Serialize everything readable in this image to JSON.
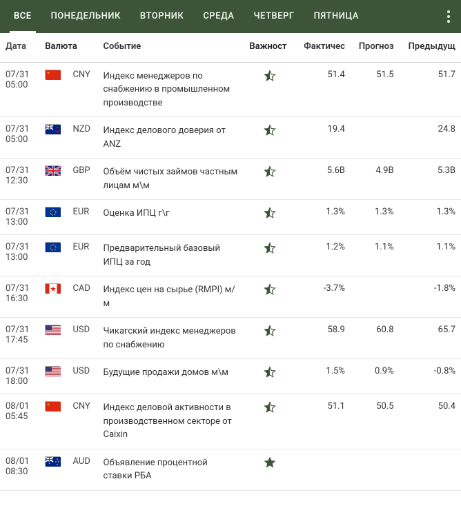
{
  "colors": {
    "header_bg": "#3d5438",
    "tab_text": "#e8eee6",
    "tab_active_underline": "#ffffff",
    "row_border": "#e6e6e6",
    "star_outline": "#3d5438",
    "star_fill": "#3d5438"
  },
  "tabs": [
    {
      "label": "ВСЕ",
      "active": true
    },
    {
      "label": "ПОНЕДЕЛЬНИК",
      "active": false
    },
    {
      "label": "ВТОРНИК",
      "active": false
    },
    {
      "label": "СРЕДА",
      "active": false
    },
    {
      "label": "ЧЕТВЕРГ",
      "active": false
    },
    {
      "label": "ПЯТНИЦА",
      "active": false
    }
  ],
  "columns": {
    "date": "Дата",
    "currency": "Валюта",
    "event": "Событие",
    "importance": "Важност",
    "actual": "Фактичес",
    "forecast": "Прогноз",
    "previous": "Предыдущ"
  },
  "flags": {
    "CNY": {
      "name": "china-flag",
      "svg": "<rect width='22' height='14' fill='#de2910'/><polygon points='4,2 5,5 2,3 6,3 3,5' fill='#ffde00'/>"
    },
    "NZD": {
      "name": "new-zealand-flag",
      "svg": "<rect width='22' height='14' fill='#00247d'/><rect width='11' height='7' fill='#00247d'/><path d='M0,0 L11,7 M11,0 L0,7' stroke='#fff' stroke-width='1.5'/><path d='M5.5,0 V7 M0,3.5 H11' stroke='#fff' stroke-width='2'/><path d='M5.5,0 V7 M0,3.5 H11' stroke='#cf142b' stroke-width='1'/><circle cx='17' cy='4' r='1' fill='#cf142b'/><circle cx='15' cy='9' r='1' fill='#cf142b'/><circle cx='19' cy='9' r='1' fill='#cf142b'/><circle cx='17' cy='11' r='1' fill='#cf142b'/>"
    },
    "GBP": {
      "name": "uk-flag",
      "svg": "<rect width='22' height='14' fill='#00247d'/><path d='M0,0 L22,14 M22,0 L0,14' stroke='#fff' stroke-width='2.5'/><path d='M0,0 L22,14 M22,0 L0,14' stroke='#cf142b' stroke-width='1'/><path d='M11,0 V14 M0,7 H22' stroke='#fff' stroke-width='4'/><path d='M11,0 V14 M0,7 H22' stroke='#cf142b' stroke-width='2'/>"
    },
    "EUR": {
      "name": "eu-flag",
      "svg": "<rect width='22' height='14' fill='#003399'/><circle cx='11' cy='7' r='4' fill='none' stroke='#ffcc00' stroke-width='1' stroke-dasharray='1 1.1'/>"
    },
    "CAD": {
      "name": "canada-flag",
      "svg": "<rect width='22' height='14' fill='#fff'/><rect width='5.5' height='14' fill='#d52b1e'/><rect x='16.5' width='5.5' height='14' fill='#d52b1e'/><polygon points='11,3 12,6 15,6 12.5,8 13.5,11 11,9 8.5,11 9.5,8 7,6 10,6' fill='#d52b1e'/>"
    },
    "USD": {
      "name": "us-flag",
      "svg": "<rect width='22' height='14' fill='#b22234'/><rect y='1.08' width='22' height='1.08' fill='#fff'/><rect y='3.23' width='22' height='1.08' fill='#fff'/><rect y='5.38' width='22' height='1.08' fill='#fff'/><rect y='7.54' width='22' height='1.08' fill='#fff'/><rect y='9.69' width='22' height='1.08' fill='#fff'/><rect y='11.85' width='22' height='1.08' fill='#fff'/><rect width='9' height='7.5' fill='#3c3b6e'/>"
    },
    "AUD": {
      "name": "australia-flag",
      "svg": "<rect width='22' height='14' fill='#00247d'/><rect width='11' height='7' fill='#00247d'/><path d='M0,0 L11,7 M11,0 L0,7' stroke='#fff' stroke-width='1.5'/><path d='M5.5,0 V7 M0,3.5 H11' stroke='#fff' stroke-width='2'/><path d='M5.5,0 V7 M0,3.5 H11' stroke='#cf142b' stroke-width='1'/><polygon points='5.5,8 6.2,10 4.8,10' fill='#fff'/><circle cx='17' cy='3' r='0.7' fill='#fff'/><circle cx='15' cy='7' r='0.7' fill='#fff'/><circle cx='19' cy='7' r='0.7' fill='#fff'/><circle cx='17' cy='11' r='0.7' fill='#fff'/><circle cx='18' cy='5' r='0.5' fill='#fff'/>"
    }
  },
  "rows": [
    {
      "date": "07/31",
      "time": "05:00",
      "currency": "CNY",
      "event": "Индекс менеджеров по снабжению в промышленном производстве",
      "importance": "half",
      "actual": "51.4",
      "forecast": "51.5",
      "previous": "51.7"
    },
    {
      "date": "07/31",
      "time": "05:00",
      "currency": "NZD",
      "event": "Индекс делового доверия от ANZ",
      "importance": "half",
      "actual": "19.4",
      "forecast": "",
      "previous": "24.8"
    },
    {
      "date": "07/31",
      "time": "12:30",
      "currency": "GBP",
      "event": "Объём чистых займов частным лицам м\\м",
      "importance": "half",
      "actual": "5.6B",
      "forecast": "4.9B",
      "previous": "5.3B"
    },
    {
      "date": "07/31",
      "time": "13:00",
      "currency": "EUR",
      "event": "Оценка ИПЦ г\\г",
      "importance": "half",
      "actual": "1.3%",
      "forecast": "1.3%",
      "previous": "1.3%"
    },
    {
      "date": "07/31",
      "time": "13:00",
      "currency": "EUR",
      "event": "Предварительный базовый ИПЦ за год",
      "importance": "half",
      "actual": "1.2%",
      "forecast": "1.1%",
      "previous": "1.1%"
    },
    {
      "date": "07/31",
      "time": "16:30",
      "currency": "CAD",
      "event": "Индекс цен на сырье (RMPI) м/м",
      "importance": "half",
      "actual": "-3.7%",
      "forecast": "",
      "previous": "-1.8%"
    },
    {
      "date": "07/31",
      "time": "17:45",
      "currency": "USD",
      "event": "Чикагский индекс менеджеров по снабжению",
      "importance": "half",
      "actual": "58.9",
      "forecast": "60.8",
      "previous": "65.7"
    },
    {
      "date": "07/31",
      "time": "18:00",
      "currency": "USD",
      "event": "Будущие продажи домов м\\м",
      "importance": "half",
      "actual": "1.5%",
      "forecast": "0.9%",
      "previous": "-0.8%"
    },
    {
      "date": "08/01",
      "time": "05:45",
      "currency": "CNY",
      "event": "Индекс деловой активности в производственном секторе от Caixin",
      "importance": "half",
      "actual": "51.1",
      "forecast": "50.5",
      "previous": "50.4"
    },
    {
      "date": "08/01",
      "time": "08:30",
      "currency": "AUD",
      "event": "Объявление процентной ставки РБА",
      "importance": "full",
      "actual": "",
      "forecast": "",
      "previous": ""
    }
  ]
}
